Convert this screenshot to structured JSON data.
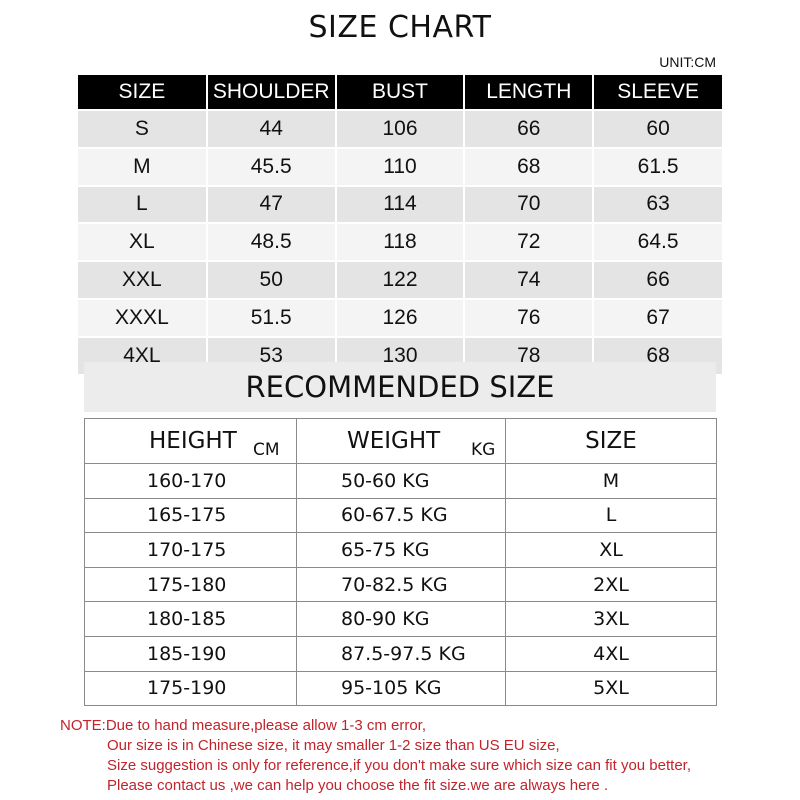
{
  "title": "SIZE CHART",
  "unit": "UNIT:CM",
  "size_table": {
    "headers": [
      "SIZE",
      "SHOULDER",
      "BUST",
      "LENGTH",
      "SLEEVE"
    ],
    "rows": [
      [
        "S",
        "44",
        "106",
        "66",
        "60"
      ],
      [
        "M",
        "45.5",
        "110",
        "68",
        "61.5"
      ],
      [
        "L",
        "47",
        "114",
        "70",
        "63"
      ],
      [
        "XL",
        "48.5",
        "118",
        "72",
        "64.5"
      ],
      [
        "XXL",
        "50",
        "122",
        "74",
        "66"
      ],
      [
        "XXXL",
        "51.5",
        "126",
        "76",
        "67"
      ],
      [
        "4XL",
        "53",
        "130",
        "78",
        "68"
      ]
    ]
  },
  "recommended": {
    "title": "RECOMMENDED SIZE",
    "headers": {
      "height": "HEIGHT",
      "height_unit": "CM",
      "weight": "WEIGHT",
      "weight_unit": "KG",
      "size": "SIZE"
    },
    "rows": [
      [
        "160-170",
        "50-60 KG",
        "M"
      ],
      [
        "165-175",
        "60-67.5 KG",
        "L"
      ],
      [
        "170-175",
        "65-75 KG",
        "XL"
      ],
      [
        "175-180",
        "70-82.5 KG",
        "2XL"
      ],
      [
        "180-185",
        "80-90 KG",
        "3XL"
      ],
      [
        "185-190",
        "87.5-97.5 KG",
        "4XL"
      ],
      [
        "175-190",
        "95-105 KG",
        "5XL"
      ]
    ]
  },
  "note": {
    "lines": [
      "NOTE:Due to hand measure,please allow 1-3 cm error,",
      "Our size is in Chinese size, it may smaller 1-2 size than US EU size,",
      "Size suggestion is only for reference,if you don't make sure which size can fit you better,",
      "Please contact  us ,we can help you choose the fit size.we are  always here ."
    ]
  },
  "colors": {
    "header_bg": "#000000",
    "note_text": "#c2232b",
    "band_bg": "#ececec"
  }
}
